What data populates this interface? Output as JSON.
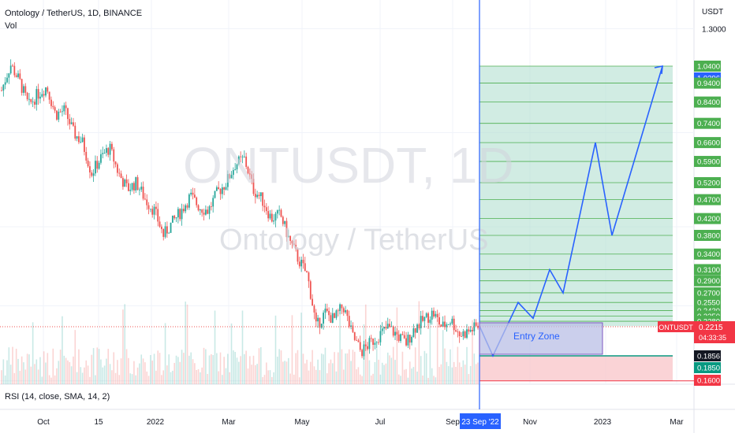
{
  "header": {
    "symbol_line": "Ontology / TetherUS, 1D, BINANCE",
    "vol_label": "Vol",
    "rsi_label": "RSI (14, close, SMA, 14, 2)"
  },
  "watermark": {
    "ticker": "ONTUSDT, 1D",
    "name": "Ontology / TetherUS"
  },
  "axis": {
    "currency": "USDT"
  },
  "annotations": {
    "entry_zone": "Entry Zone",
    "symbol_tag": "ONTUSDT",
    "price_tag": "0.2215",
    "countdown": "04:33:35",
    "cursor_date": "23 Sep '22",
    "current_target": "1.0396",
    "current_target_2": "0.1856"
  },
  "colors": {
    "up": "#26a69a",
    "down": "#ef5350",
    "target_zone": "#b2dfd0",
    "stop_zone": "#f9c8cc",
    "entry_zone": "#b9bfe6",
    "path": "#2962ff",
    "green_tag": "#4caf50",
    "red_tag": "#f23645"
  },
  "chart_data": {
    "type": "candlestick",
    "x_axis_labels": [
      "Oct",
      "15",
      "2022",
      "Mar",
      "May",
      "Jul",
      "Sep",
      "Nov",
      "2023",
      "Mar"
    ],
    "y_axis_labels": [
      "1.3000",
      "1.0400",
      "0.9400",
      "0.8400",
      "0.7400",
      "0.6600",
      "0.5900",
      "0.5200",
      "0.4700",
      "0.4200",
      "0.3800",
      "0.3400",
      "0.3100",
      "0.2900",
      "0.2700",
      "0.2550",
      "0.2430",
      "0.2350",
      "0.2280",
      "0.1850",
      "0.1600"
    ],
    "y_axis_tags": [
      {
        "value": "1.0400",
        "style": "green"
      },
      {
        "value": "1.0396",
        "style": "blue"
      },
      {
        "value": "0.9400",
        "style": "green"
      },
      {
        "value": "0.8400",
        "style": "green"
      },
      {
        "value": "0.7400",
        "style": "green"
      },
      {
        "value": "0.6600",
        "style": "green"
      },
      {
        "value": "0.5900",
        "style": "green"
      },
      {
        "value": "0.5200",
        "style": "green"
      },
      {
        "value": "0.4700",
        "style": "green"
      },
      {
        "value": "0.4200",
        "style": "green"
      },
      {
        "value": "0.3800",
        "style": "green"
      },
      {
        "value": "0.3400",
        "style": "green"
      },
      {
        "value": "0.3100",
        "style": "green"
      },
      {
        "value": "0.2900",
        "style": "green"
      },
      {
        "value": "0.2700",
        "style": "green"
      },
      {
        "value": "0.2550",
        "style": "green"
      },
      {
        "value": "0.2430",
        "style": "green"
      },
      {
        "value": "0.2350",
        "style": "green"
      },
      {
        "value": "0.2280",
        "style": "green"
      },
      {
        "value": "0.1856",
        "style": "dark"
      },
      {
        "value": "0.1850",
        "style": "teal"
      },
      {
        "value": "0.1600",
        "style": "red"
      }
    ],
    "price_levels": [
      1.04,
      0.94,
      0.84,
      0.74,
      0.66,
      0.59,
      0.52,
      0.47,
      0.42,
      0.38,
      0.34,
      0.31,
      0.29,
      0.27,
      0.255,
      0.243,
      0.235,
      0.228
    ],
    "scale": "log",
    "price_close_path": [
      0.9,
      1.05,
      0.95,
      0.82,
      0.88,
      0.92,
      0.78,
      0.8,
      0.7,
      0.66,
      0.55,
      0.6,
      0.64,
      0.55,
      0.5,
      0.52,
      0.47,
      0.44,
      0.38,
      0.41,
      0.44,
      0.48,
      0.45,
      0.44,
      0.49,
      0.52,
      0.58,
      0.6,
      0.5,
      0.47,
      0.42,
      0.43,
      0.37,
      0.33,
      0.3,
      0.22,
      0.24,
      0.23,
      0.25,
      0.21,
      0.19,
      0.2,
      0.21,
      0.22,
      0.21,
      0.2,
      0.22,
      0.23,
      0.24,
      0.22,
      0.23,
      0.21,
      0.215,
      0.2215
    ],
    "projection_path": [
      {
        "t": 0,
        "price": 0.2215
      },
      {
        "t": 1,
        "price": 0.1856
      },
      {
        "t": 2,
        "price": 0.255
      },
      {
        "t": 3,
        "price": 0.232
      },
      {
        "t": 4,
        "price": 0.31
      },
      {
        "t": 5,
        "price": 0.27
      },
      {
        "t": 6,
        "price": 0.66
      },
      {
        "t": 7,
        "price": 0.38
      },
      {
        "t": 8,
        "price": 1.04
      }
    ],
    "target_zone": {
      "from": 0.2215,
      "to": 1.04
    },
    "stop_zone": {
      "from": 0.16,
      "to": 0.1856
    },
    "entry_zone": {
      "from": 0.1856,
      "to": 0.2215
    },
    "current_price": 0.2215,
    "grid": true,
    "legend": "none"
  }
}
